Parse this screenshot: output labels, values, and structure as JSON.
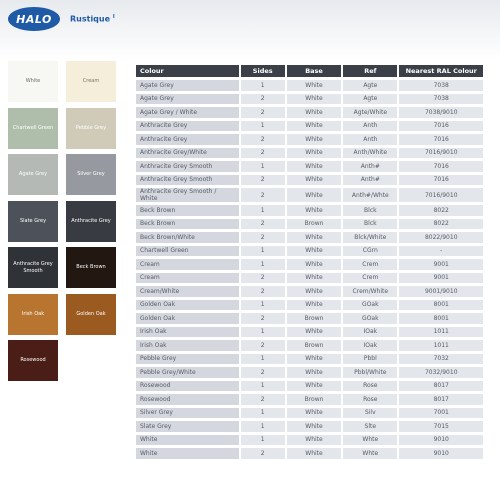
{
  "header": {
    "logo": "HALO",
    "title": "Rustique",
    "title_mark": "I"
  },
  "swatches": [
    {
      "label": "White",
      "bg": "#f7f7f3",
      "fg": "#6a6a6a"
    },
    {
      "label": "Cream",
      "bg": "#f5eedb",
      "fg": "#7a7468"
    },
    {
      "label": "Chartwell Green",
      "bg": "#aebeaa",
      "fg": "#ffffff"
    },
    {
      "label": "Pebble Grey",
      "bg": "#cfcbb8",
      "fg": "#ffffff"
    },
    {
      "label": "Agate Grey",
      "bg": "#b4b9b5",
      "fg": "#ffffff"
    },
    {
      "label": "Silver Grey",
      "bg": "#96999f",
      "fg": "#ffffff"
    },
    {
      "label": "Slate Grey",
      "bg": "#4d525a",
      "fg": "#ffffff"
    },
    {
      "label": "Anthracite Grey",
      "bg": "#383c42",
      "fg": "#ffffff"
    },
    {
      "label": "Anthracite Grey Smooth",
      "bg": "#2f3236",
      "fg": "#ffffff"
    },
    {
      "label": "Beck Brown",
      "bg": "#231712",
      "fg": "#ffffff"
    },
    {
      "label": "Irish Oak",
      "bg": "#b7752f",
      "fg": "#ffffff"
    },
    {
      "label": "Golden Oak",
      "bg": "#9a5a20",
      "fg": "#ffffff"
    },
    {
      "label": "Rosewood",
      "bg": "#4a1e16",
      "fg": "#ffffff"
    }
  ],
  "table": {
    "headers": [
      "Colour",
      "Sides",
      "Base",
      "Ref",
      "Nearest RAL Colour"
    ],
    "rows": [
      [
        "Agate Grey",
        "1",
        "White",
        "Agte",
        "7038"
      ],
      [
        "Agate Grey",
        "2",
        "White",
        "Agte",
        "7038"
      ],
      [
        "Agate Grey / White",
        "2",
        "White",
        "Agte/White",
        "7038/9010"
      ],
      [
        "Anthracite Grey",
        "1",
        "White",
        "Anth",
        "7016"
      ],
      [
        "Anthracite Grey",
        "2",
        "White",
        "Anth",
        "7016"
      ],
      [
        "Anthracite Grey/White",
        "2",
        "White",
        "Anth/White",
        "7016/9010"
      ],
      [
        "Anthracite Grey Smooth",
        "1",
        "White",
        "Anth#",
        "7016"
      ],
      [
        "Anthracite Grey Smooth",
        "2",
        "White",
        "Anth#",
        "7016"
      ],
      [
        "Anthracite Grey Smooth / White",
        "2",
        "White",
        "Anth#/Whte",
        "7016/9010"
      ],
      [
        "Beck Brown",
        "1",
        "White",
        "Blck",
        "8022"
      ],
      [
        "Beck Brown",
        "2",
        "Brown",
        "Blck",
        "8022"
      ],
      [
        "Beck Brown/White",
        "2",
        "White",
        "Blck/White",
        "8022/9010"
      ],
      [
        "Chartwell Green",
        "1",
        "White",
        "CGrn",
        "-"
      ],
      [
        "Cream",
        "1",
        "White",
        "Crem",
        "9001"
      ],
      [
        "Cream",
        "2",
        "White",
        "Crem",
        "9001"
      ],
      [
        "Cream/White",
        "2",
        "White",
        "Crem/White",
        "9001/9010"
      ],
      [
        "Golden Oak",
        "1",
        "White",
        "GOak",
        "8001"
      ],
      [
        "Golden Oak",
        "2",
        "Brown",
        "GOak",
        "8001"
      ],
      [
        "Irish Oak",
        "1",
        "White",
        "IOak",
        "1011"
      ],
      [
        "Irish Oak",
        "2",
        "Brown",
        "IOak",
        "1011"
      ],
      [
        "Pebble Grey",
        "1",
        "White",
        "Pbbl",
        "7032"
      ],
      [
        "Pebble Grey/White",
        "2",
        "White",
        "Pbbl/White",
        "7032/9010"
      ],
      [
        "Rosewood",
        "1",
        "White",
        "Rose",
        "8017"
      ],
      [
        "Rosewood",
        "2",
        "Brown",
        "Rose",
        "8017"
      ],
      [
        "Silver Grey",
        "1",
        "White",
        "Silv",
        "7001"
      ],
      [
        "Slate Grey",
        "1",
        "White",
        "Slte",
        "7015"
      ],
      [
        "White",
        "1",
        "White",
        "Whte",
        "9010"
      ],
      [
        "White",
        "2",
        "White",
        "Whte",
        "9010"
      ]
    ]
  }
}
